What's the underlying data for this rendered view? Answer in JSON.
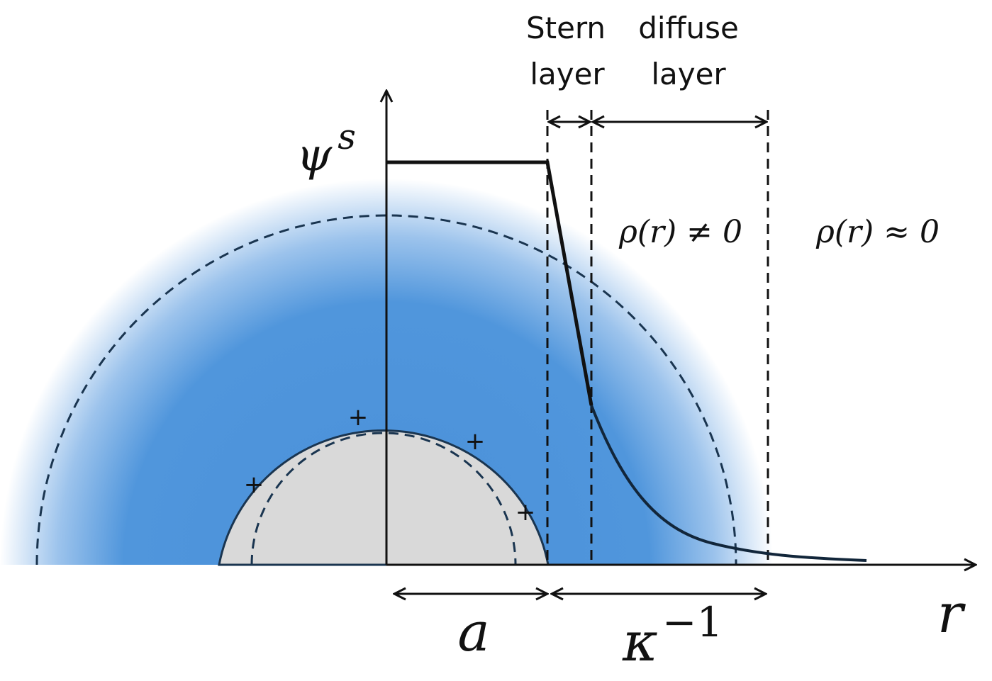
{
  "stern_layer": {
    "line1": "Stern",
    "line2": "layer"
  },
  "diffuse_layer": {
    "line1": "diffuse",
    "line2": "layer"
  },
  "potential_label": {
    "symbol": "ψ",
    "superscript": "s"
  },
  "regions": {
    "inside": "ρ(r) ≠ 0",
    "outside": "ρ(r) ≈ 0"
  },
  "radius_label": "a",
  "debye_label": {
    "symbol": "κ",
    "superscript": "−1"
  },
  "axis_label": "r",
  "charges": [
    "+",
    "+",
    "+",
    "+"
  ]
}
